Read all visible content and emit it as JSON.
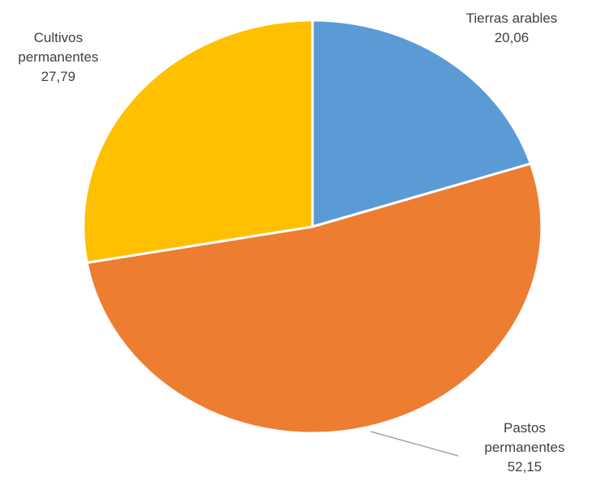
{
  "chart_data": {
    "type": "pie",
    "title": "",
    "slices": [
      {
        "label_lines": [
          "Tierras arables"
        ],
        "value": 20.06,
        "value_label": "20,06",
        "color": "#5B9BD5"
      },
      {
        "label_lines": [
          "Pastos",
          "permanentes"
        ],
        "value": 52.15,
        "value_label": "52,15",
        "color": "#ED7D31"
      },
      {
        "label_lines": [
          "Cultivos",
          "permanentes"
        ],
        "value": 27.79,
        "value_label": "27,79",
        "color": "#FFC000"
      }
    ],
    "start_angle_deg": 0,
    "direction": "clockwise",
    "legend": "none",
    "leader_line_color": "#A6A6A6"
  }
}
